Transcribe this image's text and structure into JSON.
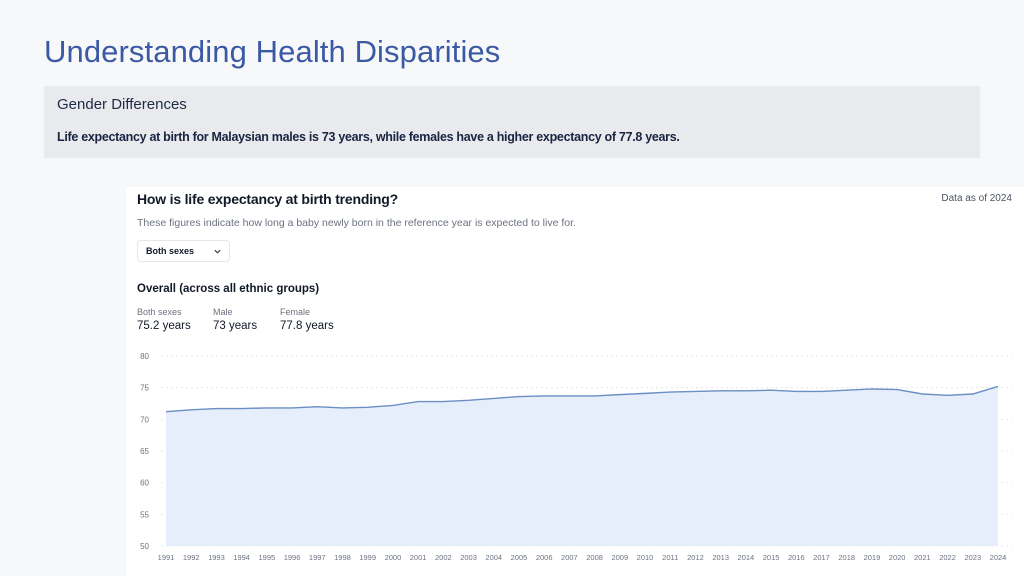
{
  "slide": {
    "title": "Understanding Health Disparities",
    "callout_heading": "Gender Differences",
    "callout_text": "Life expectancy at birth for Malaysian males is 73 years, while females have a higher expectancy of 77.8 years."
  },
  "card": {
    "title": "How is life expectancy at birth trending?",
    "as_of": "Data as of 2024",
    "description": "These figures indicate how long a baby newly born in the reference year is expected to live for.",
    "dropdown_value": "Both sexes",
    "section_title": "Overall (across all ethnic groups)",
    "stats": [
      {
        "label": "Both sexes",
        "value": "75.2 years"
      },
      {
        "label": "Male",
        "value": "73 years"
      },
      {
        "label": "Female",
        "value": "77.8 years"
      }
    ]
  },
  "chart_data": {
    "type": "area",
    "title": "",
    "xlabel": "",
    "ylabel": "",
    "ylim": [
      50,
      80
    ],
    "yticks": [
      50,
      55,
      60,
      65,
      70,
      75,
      80
    ],
    "grid": true,
    "x": [
      "1991",
      "1992",
      "1993",
      "1994",
      "1995",
      "1996",
      "1997",
      "1998",
      "1999",
      "2000",
      "2001",
      "2002",
      "2003",
      "2004",
      "2005",
      "2006",
      "2007",
      "2008",
      "2009",
      "2010",
      "2011",
      "2012",
      "2013",
      "2014",
      "2015",
      "2016",
      "2017",
      "2018",
      "2019",
      "2020",
      "2021",
      "2022",
      "2023",
      "2024"
    ],
    "series": [
      {
        "values": [
          71.2,
          71.5,
          71.7,
          71.7,
          71.8,
          71.8,
          72.0,
          71.8,
          71.9,
          72.2,
          72.8,
          72.8,
          73.0,
          73.3,
          73.6,
          73.7,
          73.7,
          73.7,
          73.9,
          74.1,
          74.3,
          74.4,
          74.5,
          74.5,
          74.6,
          74.4,
          74.4,
          74.6,
          74.8,
          74.7,
          74.0,
          73.8,
          74.0,
          75.2
        ]
      }
    ],
    "colors": {
      "line": "#6b8ec4",
      "fill": "#e6eefb",
      "grid": "#e5e7eb",
      "tick": "#6b7280"
    }
  }
}
